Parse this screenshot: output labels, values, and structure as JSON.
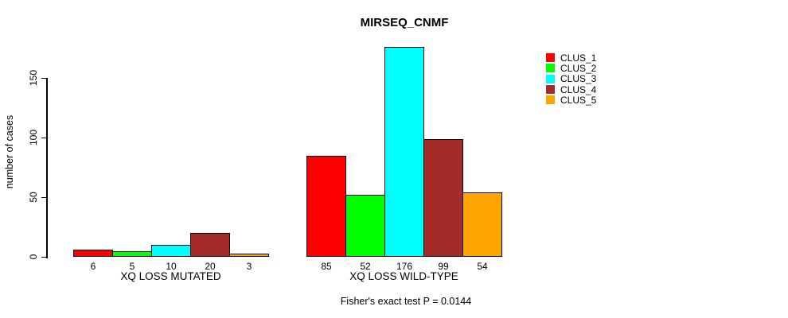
{
  "chart_data": {
    "type": "bar",
    "title": "MIRSEQ_CNMF",
    "ylabel": "number of cases",
    "ylim": [
      0,
      176
    ],
    "yticks": [
      0,
      50,
      100,
      150
    ],
    "grid": false,
    "legend_position": "top-right",
    "categories": [
      "XQ LOSS MUTATED",
      "XQ LOSS WILD-TYPE"
    ],
    "series": [
      {
        "name": "CLUS_1",
        "color": "#ff0000",
        "values": [
          6,
          85
        ]
      },
      {
        "name": "CLUS_2",
        "color": "#00ff00",
        "values": [
          5,
          52
        ]
      },
      {
        "name": "CLUS_3",
        "color": "#00ffff",
        "values": [
          10,
          176
        ]
      },
      {
        "name": "CLUS_4",
        "color": "#a52a2a",
        "values": [
          20,
          99
        ]
      },
      {
        "name": "CLUS_5",
        "color": "#ffa500",
        "values": [
          3,
          54
        ]
      }
    ],
    "note": "Fisher's exact test P = 0.0144",
    "axis_color": "#000000",
    "bar_border_color": "#000000",
    "background_color": "#ffffff"
  }
}
